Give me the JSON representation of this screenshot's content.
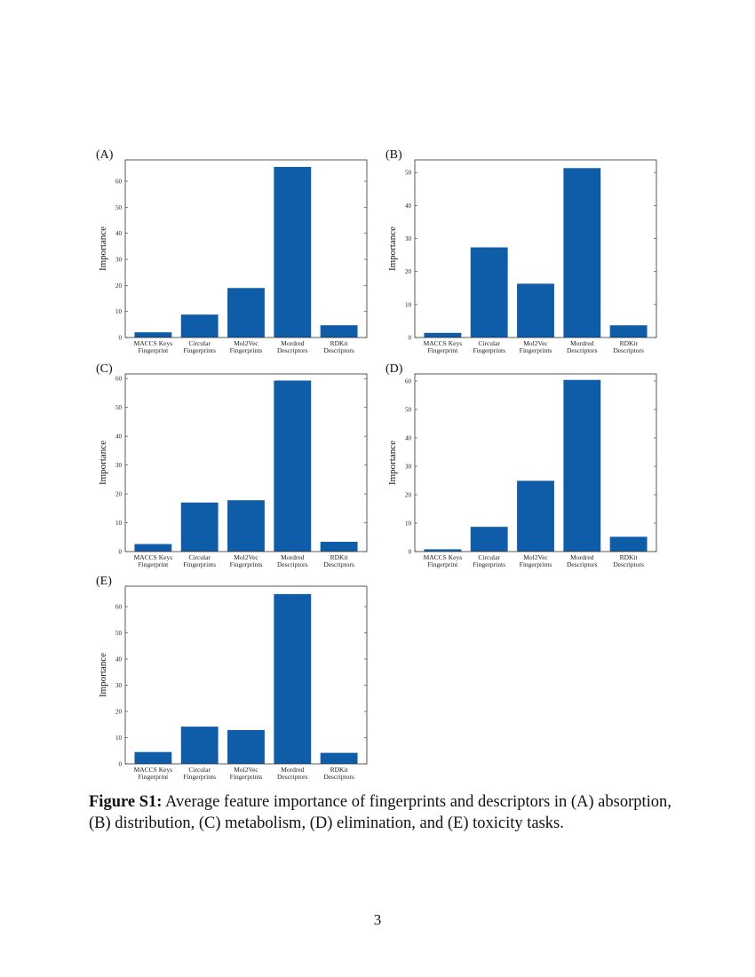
{
  "figure": {
    "caption_label": "Figure S1:",
    "caption_text": " Average feature importance of fingerprints and descriptors in (A) absorption, (B) distribution, (C) metabolism, (D) elimination, and (E) toxicity tasks."
  },
  "page_number": "3",
  "chart_data": [
    {
      "panel": "(A)",
      "type": "bar",
      "ylabel": "Importance",
      "categories": [
        [
          "MACCS Keys",
          "Fingerprint"
        ],
        [
          "Circular",
          "Fingerprints"
        ],
        [
          "Mol2Vec",
          "Fingerprints"
        ],
        [
          "Mordred",
          "Descriptors"
        ],
        [
          "RDKit",
          "Descriptors"
        ]
      ],
      "values": [
        2.0,
        8.8,
        19.0,
        65.5,
        4.7
      ],
      "ylim": [
        0,
        68.2
      ],
      "yticks": [
        0,
        10,
        20,
        30,
        40,
        50,
        60
      ],
      "color": "#0f5ca8"
    },
    {
      "panel": "(B)",
      "type": "bar",
      "ylabel": "Importance",
      "categories": [
        [
          "MACCS Keys",
          "Fingerprint"
        ],
        [
          "Circular",
          "Fingerprints"
        ],
        [
          "Mol2Vec",
          "Fingerprints"
        ],
        [
          "Mordred",
          "Descriptors"
        ],
        [
          "RDKit",
          "Descriptors"
        ]
      ],
      "values": [
        1.4,
        27.3,
        16.3,
        51.3,
        3.7
      ],
      "ylim": [
        0,
        53.8
      ],
      "yticks": [
        0,
        10,
        20,
        30,
        40,
        50
      ],
      "color": "#0f5ca8"
    },
    {
      "panel": "(C)",
      "type": "bar",
      "ylabel": "Importance",
      "categories": [
        [
          "MACCS Keys",
          "Fingerprint"
        ],
        [
          "Circular",
          "Fingerprints"
        ],
        [
          "Mol2Vec",
          "Fingerprints"
        ],
        [
          "Mordred",
          "Descriptors"
        ],
        [
          "RDKit",
          "Descriptors"
        ]
      ],
      "values": [
        2.6,
        17.0,
        17.8,
        59.3,
        3.4
      ],
      "ylim": [
        0,
        61.6
      ],
      "yticks": [
        0,
        10,
        20,
        30,
        40,
        50,
        60
      ],
      "color": "#0f5ca8"
    },
    {
      "panel": "(D)",
      "type": "bar",
      "ylabel": "Importance",
      "categories": [
        [
          "MACCS Keys",
          "Fingerprint"
        ],
        [
          "Circular",
          "Fingerprints"
        ],
        [
          "Mol2Vec",
          "Fingerprints"
        ],
        [
          "Mordred",
          "Descriptors"
        ],
        [
          "RDKit",
          "Descriptors"
        ]
      ],
      "values": [
        0.8,
        8.7,
        24.9,
        60.4,
        5.2
      ],
      "ylim": [
        0,
        62.5
      ],
      "yticks": [
        0,
        10,
        20,
        30,
        40,
        50,
        60
      ],
      "color": "#0f5ca8"
    },
    {
      "panel": "(E)",
      "type": "bar",
      "ylabel": "Importance",
      "categories": [
        [
          "MACCS Keys",
          "Fingerprint"
        ],
        [
          "Circular",
          "Fingerprints"
        ],
        [
          "Mol2Vec",
          "Fingerprints"
        ],
        [
          "Mordred",
          "Descriptors"
        ],
        [
          "RDKit",
          "Descriptors"
        ]
      ],
      "values": [
        4.5,
        14.2,
        12.9,
        64.8,
        4.2
      ],
      "ylim": [
        0,
        67.8
      ],
      "yticks": [
        0,
        10,
        20,
        30,
        40,
        50,
        60
      ],
      "color": "#0f5ca8"
    }
  ]
}
